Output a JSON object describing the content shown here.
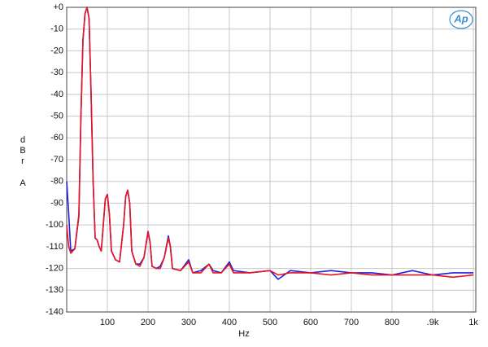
{
  "chart_data": {
    "type": "line",
    "x_label": "Hz",
    "y_label": [
      "d",
      "B",
      "r",
      "A"
    ],
    "logo": "Ap",
    "xlim": [
      0,
      1000
    ],
    "ylim": [
      -140,
      0
    ],
    "xticks": [
      100,
      200,
      300,
      400,
      500,
      600,
      700,
      800,
      {
        "value": 900,
        "label": ".9k"
      },
      {
        "value": 1000,
        "label": "1k"
      }
    ],
    "yticks": [
      {
        "value": 0,
        "label": "+0"
      },
      -10,
      -20,
      -30,
      -40,
      -50,
      -60,
      -70,
      -80,
      -90,
      -100,
      -110,
      -120,
      -130,
      -140
    ],
    "grid": true,
    "x": [
      0,
      5,
      10,
      20,
      30,
      35,
      40,
      45,
      50,
      55,
      60,
      65,
      70,
      75,
      80,
      85,
      90,
      95,
      100,
      105,
      110,
      120,
      130,
      140,
      145,
      150,
      155,
      160,
      170,
      180,
      190,
      200,
      205,
      210,
      220,
      230,
      240,
      250,
      255,
      260,
      280,
      300,
      310,
      330,
      350,
      360,
      380,
      400,
      410,
      450,
      500,
      520,
      550,
      600,
      650,
      700,
      750,
      800,
      850,
      900,
      950,
      1000
    ],
    "series": [
      {
        "color": "#1f1fe0",
        "values": [
          -80,
          -95,
          -112,
          -111,
          -96,
          -50,
          -15,
          -3,
          0,
          -5,
          -40,
          -80,
          -106,
          -107,
          -110,
          -112,
          -100,
          -88,
          -86,
          -95,
          -112,
          -116,
          -117,
          -100,
          -87,
          -84,
          -90,
          -112,
          -118,
          -118,
          -115,
          -103,
          -108,
          -119,
          -120,
          -119,
          -115,
          -105,
          -110,
          -120,
          -121,
          -116,
          -122,
          -121,
          -118,
          -121,
          -122,
          -117,
          -121,
          -122,
          -121,
          -125,
          -121,
          -122,
          -121,
          -122,
          -122,
          -123,
          -121,
          -123,
          -122,
          -122
        ]
      },
      {
        "color": "#e8141e",
        "values": [
          -100,
          -110,
          -113,
          -111,
          -95,
          -50,
          -15,
          -3,
          0,
          -5,
          -40,
          -80,
          -106,
          -107,
          -110,
          -112,
          -100,
          -88,
          -86,
          -95,
          -112,
          -116,
          -117,
          -100,
          -87,
          -84,
          -90,
          -112,
          -118,
          -119,
          -115,
          -103,
          -108,
          -119,
          -120,
          -120,
          -115,
          -106,
          -110,
          -120,
          -121,
          -117,
          -122,
          -122,
          -118,
          -122,
          -122,
          -118,
          -122,
          -122,
          -121,
          -123,
          -122,
          -122,
          -123,
          -122,
          -123,
          -123,
          -123,
          -123,
          -124,
          -123
        ]
      }
    ]
  }
}
